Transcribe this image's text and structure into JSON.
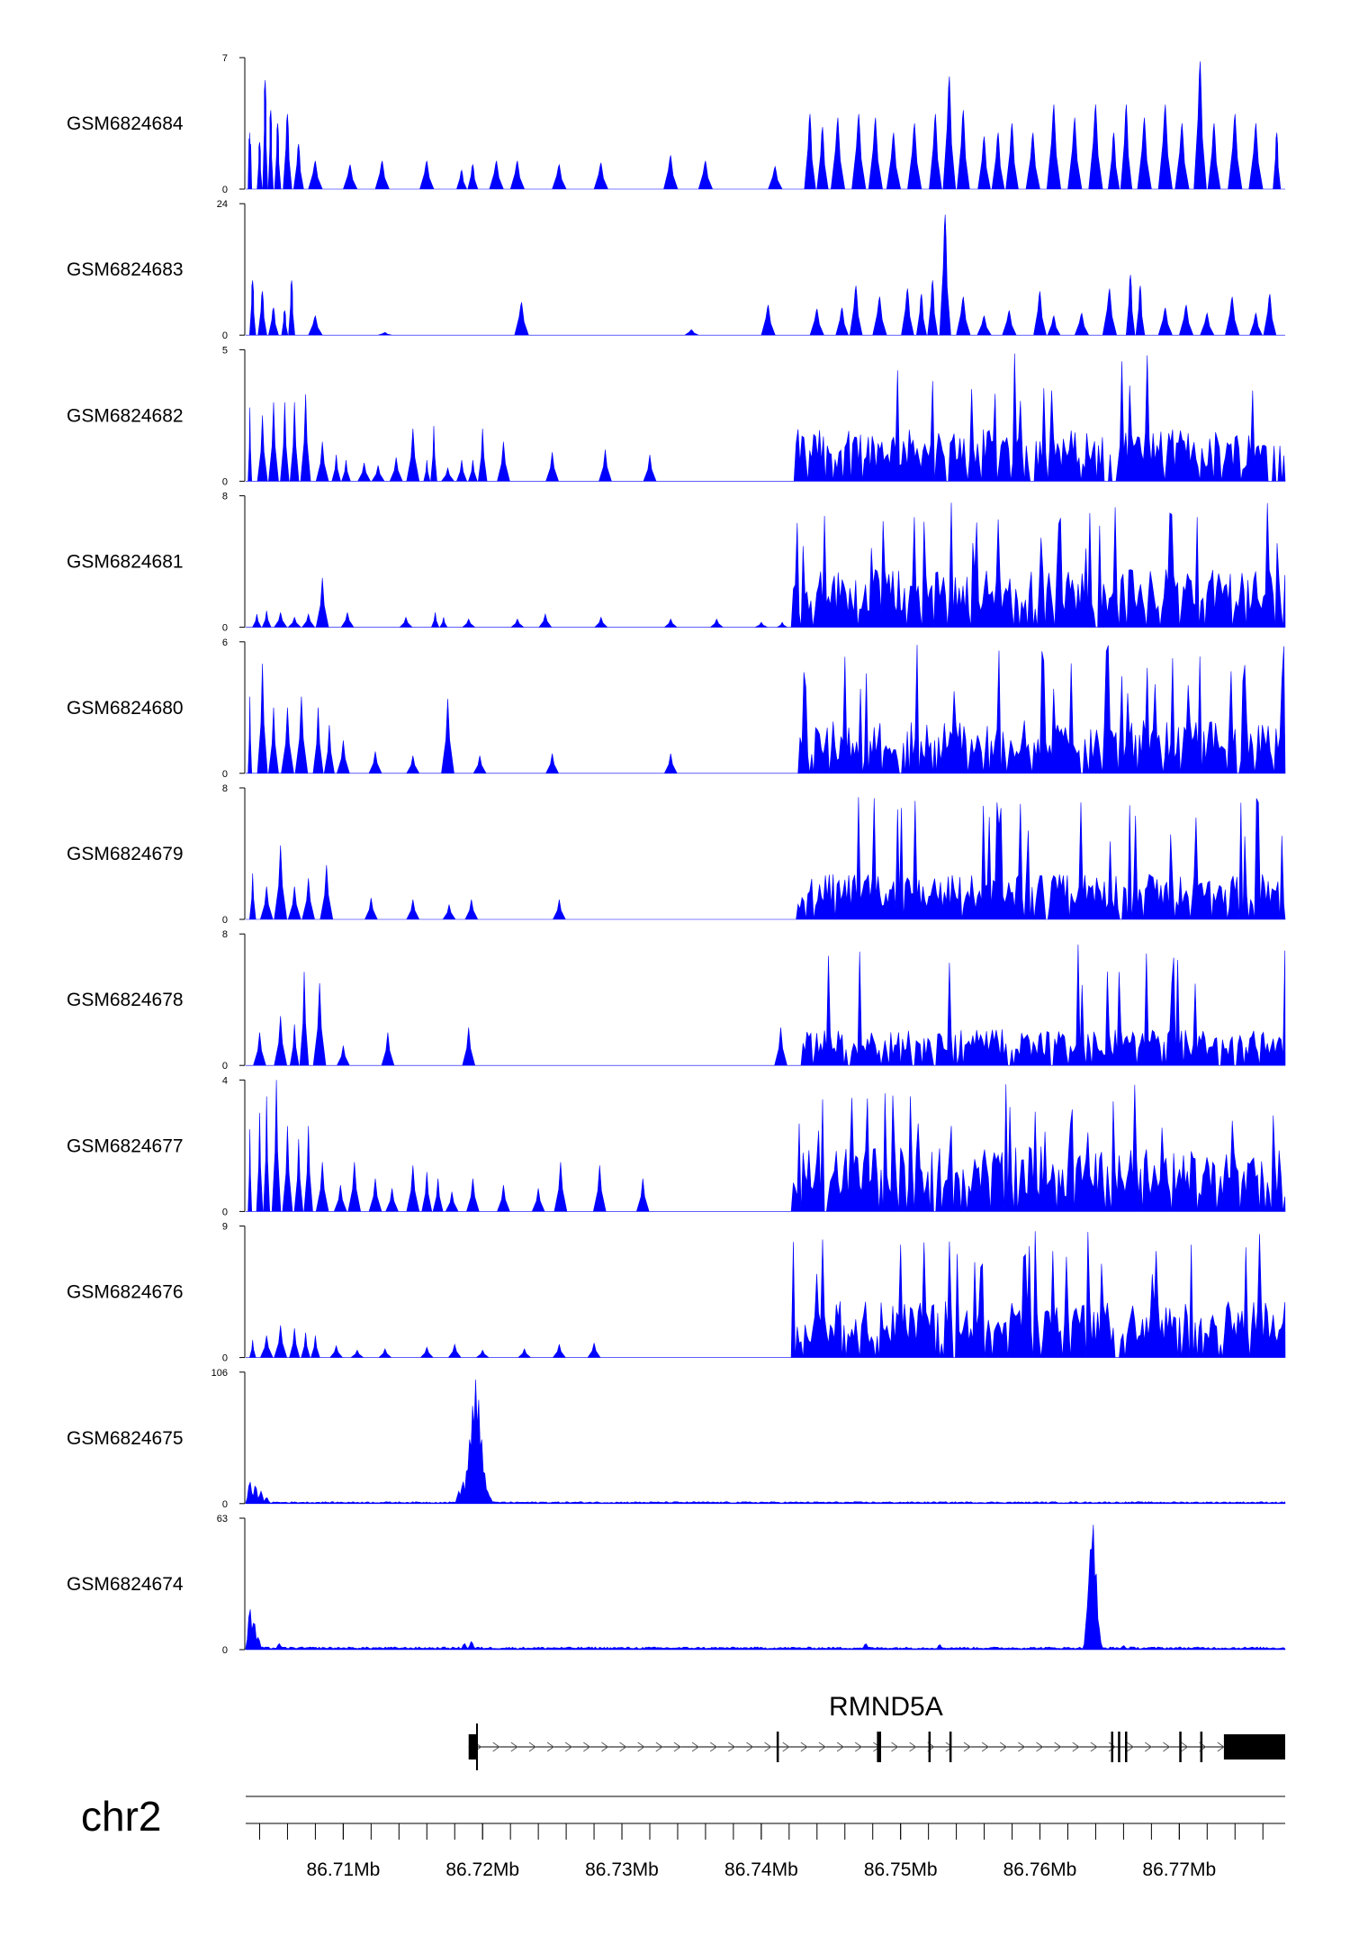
{
  "colors": {
    "signal": "#0000ff",
    "axis": "#000000",
    "gene": "#000000",
    "chrom_line": "#808080"
  },
  "chart_data": {
    "type": "area",
    "title": "",
    "chromosome": "chr2",
    "x_range_bp": [
      86703000,
      86777600
    ],
    "genomic_axis": {
      "ticks": [
        86710000,
        86720000,
        86730000,
        86740000,
        86750000,
        86760000,
        86770000
      ],
      "tick_labels": [
        "86.71Mb",
        "86.72Mb",
        "86.73Mb",
        "86.74Mb",
        "86.75Mb",
        "86.76Mb",
        "86.77Mb"
      ],
      "minor_tick_step_bp": 2000
    },
    "gene": {
      "name": "RMND5A",
      "strand": "+",
      "start_bp": 86719000,
      "end_bp": 86777600,
      "exons_bp": [
        [
          86719000,
          86719600
        ],
        [
          86741100,
          86741200
        ],
        [
          86748300,
          86748600
        ],
        [
          86752000,
          86752100
        ],
        [
          86753500,
          86753600
        ],
        [
          86765100,
          86765200
        ],
        [
          86765600,
          86765700
        ],
        [
          86766100,
          86766200
        ],
        [
          86770000,
          86770100
        ],
        [
          86771500,
          86771600
        ],
        [
          86773200,
          86777600
        ]
      ]
    },
    "tracks": [
      {
        "name": "GSM6824684",
        "ylim": [
          0,
          7
        ],
        "ytick_labels": [
          "7",
          "0"
        ],
        "style": "sparse",
        "peaks": [
          [
            86703300,
            3
          ],
          [
            86704000,
            2.5
          ],
          [
            86704400,
            5.8
          ],
          [
            86704800,
            4.2
          ],
          [
            86705300,
            3.5
          ],
          [
            86706000,
            4
          ],
          [
            86706800,
            2.4
          ],
          [
            86708000,
            1.5
          ],
          [
            86710500,
            1.3
          ],
          [
            86712800,
            1.5
          ],
          [
            86716000,
            1.5
          ],
          [
            86718500,
            1
          ],
          [
            86719300,
            1.3
          ],
          [
            86721000,
            1.5
          ],
          [
            86722500,
            1.5
          ],
          [
            86725500,
            1.3
          ],
          [
            86728500,
            1.4
          ],
          [
            86733500,
            1.8
          ],
          [
            86736000,
            1.5
          ],
          [
            86741000,
            1.2
          ],
          [
            86743500,
            4
          ],
          [
            86744400,
            3.3
          ],
          [
            86745500,
            3.8
          ],
          [
            86747000,
            4
          ],
          [
            86748200,
            3.8
          ],
          [
            86749500,
            3
          ],
          [
            86751000,
            3.5
          ],
          [
            86752500,
            4
          ],
          [
            86753500,
            6
          ],
          [
            86754500,
            4.2
          ],
          [
            86756000,
            2.8
          ],
          [
            86757000,
            3
          ],
          [
            86758000,
            3.5
          ],
          [
            86759500,
            3
          ],
          [
            86761000,
            4.5
          ],
          [
            86762500,
            3.8
          ],
          [
            86764000,
            4.5
          ],
          [
            86765300,
            3
          ],
          [
            86766200,
            4.5
          ],
          [
            86767500,
            3.8
          ],
          [
            86769000,
            4.5
          ],
          [
            86770200,
            3.5
          ],
          [
            86771500,
            6.8
          ],
          [
            86772500,
            3.5
          ],
          [
            86774000,
            4
          ],
          [
            86775500,
            3.5
          ],
          [
            86777000,
            3
          ]
        ]
      },
      {
        "name": "GSM6824683",
        "ylim": [
          0,
          24
        ],
        "ytick_labels": [
          "24",
          "0"
        ],
        "style": "sparse",
        "peaks": [
          [
            86703500,
            10
          ],
          [
            86704200,
            8
          ],
          [
            86705000,
            5
          ],
          [
            86705800,
            4.5
          ],
          [
            86706300,
            10
          ],
          [
            86708000,
            3.5
          ],
          [
            86713000,
            0.5
          ],
          [
            86722800,
            6
          ],
          [
            86735000,
            1
          ],
          [
            86740500,
            5.5
          ],
          [
            86744000,
            4.8
          ],
          [
            86745800,
            5
          ],
          [
            86746800,
            9
          ],
          [
            86748500,
            7
          ],
          [
            86750500,
            8.5
          ],
          [
            86751500,
            7.5
          ],
          [
            86752300,
            10
          ],
          [
            86753200,
            22
          ],
          [
            86754500,
            7
          ],
          [
            86756000,
            3.5
          ],
          [
            86757800,
            4.5
          ],
          [
            86760000,
            8
          ],
          [
            86761000,
            3.5
          ],
          [
            86763000,
            4
          ],
          [
            86765000,
            8.5
          ],
          [
            86766500,
            11
          ],
          [
            86767200,
            9
          ],
          [
            86769000,
            5
          ],
          [
            86770500,
            5.5
          ],
          [
            86772000,
            4
          ],
          [
            86773800,
            7
          ],
          [
            86775500,
            4
          ],
          [
            86776500,
            7.5
          ]
        ]
      },
      {
        "name": "GSM6824682",
        "ylim": [
          0,
          5
        ],
        "ytick_labels": [
          "5",
          "0"
        ],
        "style": "dense_right",
        "left_peaks": [
          [
            86703300,
            2.8
          ],
          [
            86704200,
            2.5
          ],
          [
            86705000,
            3
          ],
          [
            86705800,
            3
          ],
          [
            86706500,
            3
          ],
          [
            86707300,
            3.3
          ],
          [
            86708500,
            1.5
          ],
          [
            86709500,
            1
          ],
          [
            86710200,
            0.8
          ],
          [
            86711500,
            0.7
          ],
          [
            86712500,
            0.6
          ],
          [
            86713800,
            0.9
          ],
          [
            86715000,
            2
          ],
          [
            86716000,
            0.8
          ],
          [
            86716500,
            2.1
          ],
          [
            86717500,
            0.5
          ],
          [
            86718500,
            0.8
          ],
          [
            86719300,
            0.8
          ],
          [
            86720000,
            2
          ],
          [
            86721500,
            1.5
          ],
          [
            86725000,
            1.1
          ],
          [
            86728800,
            1.2
          ],
          [
            86732000,
            1
          ]
        ],
        "right_start_bp": 86742500,
        "right_level": 1.8,
        "right_max": 5
      },
      {
        "name": "GSM6824681",
        "ylim": [
          0,
          8
        ],
        "ytick_labels": [
          "8",
          "0"
        ],
        "style": "dense_right",
        "left_peaks": [
          [
            86703800,
            0.8
          ],
          [
            86704500,
            1
          ],
          [
            86705500,
            0.9
          ],
          [
            86706500,
            0.6
          ],
          [
            86707500,
            0.8
          ],
          [
            86708500,
            3
          ],
          [
            86710300,
            0.9
          ],
          [
            86714500,
            0.6
          ],
          [
            86716600,
            0.9
          ],
          [
            86717200,
            0.6
          ],
          [
            86719000,
            0.5
          ],
          [
            86722500,
            0.5
          ],
          [
            86724500,
            0.8
          ],
          [
            86728500,
            0.6
          ],
          [
            86733500,
            0.5
          ],
          [
            86736800,
            0.5
          ],
          [
            86740000,
            0.3
          ],
          [
            86741500,
            0.3
          ]
        ],
        "right_start_bp": 86742300,
        "right_level": 3.2,
        "right_max": 7.8
      },
      {
        "name": "GSM6824680",
        "ylim": [
          0,
          6
        ],
        "ytick_labels": [
          "6",
          "0"
        ],
        "style": "dense_right",
        "left_peaks": [
          [
            86703300,
            3.5
          ],
          [
            86704200,
            5
          ],
          [
            86705000,
            3
          ],
          [
            86706000,
            3
          ],
          [
            86707000,
            3.5
          ],
          [
            86708200,
            3
          ],
          [
            86709000,
            2.2
          ],
          [
            86710000,
            1.5
          ],
          [
            86712300,
            1
          ],
          [
            86715000,
            0.8
          ],
          [
            86717500,
            3.4
          ],
          [
            86719800,
            0.8
          ],
          [
            86725000,
            0.9
          ],
          [
            86733500,
            0.9
          ]
        ],
        "right_start_bp": 86742500,
        "right_level": 2.2,
        "right_max": 5.9
      },
      {
        "name": "GSM6824679",
        "ylim": [
          0,
          8
        ],
        "ytick_labels": [
          "8",
          "0"
        ],
        "style": "dense_right",
        "left_peaks": [
          [
            86703500,
            2.8
          ],
          [
            86704500,
            2
          ],
          [
            86705500,
            4.5
          ],
          [
            86706500,
            2
          ],
          [
            86707500,
            2.5
          ],
          [
            86708800,
            3.3
          ],
          [
            86712000,
            1.3
          ],
          [
            86715000,
            1.2
          ],
          [
            86717600,
            0.9
          ],
          [
            86719200,
            1.2
          ],
          [
            86725500,
            1.2
          ]
        ],
        "right_start_bp": 86742500,
        "right_level": 2.5,
        "right_max": 7.8
      },
      {
        "name": "GSM6824678",
        "ylim": [
          0,
          8
        ],
        "ytick_labels": [
          "8",
          "0"
        ],
        "style": "dense_right",
        "left_peaks": [
          [
            86704000,
            2
          ],
          [
            86705500,
            3
          ],
          [
            86706500,
            2.5
          ],
          [
            86707200,
            5.7
          ],
          [
            86708300,
            5
          ],
          [
            86710000,
            1.2
          ],
          [
            86713200,
            2
          ],
          [
            86719000,
            2.3
          ],
          [
            86741400,
            2.3
          ]
        ],
        "right_start_bp": 86743000,
        "right_level": 2,
        "right_max": 7.9
      },
      {
        "name": "GSM6824677",
        "ylim": [
          0,
          4
        ],
        "ytick_labels": [
          "4",
          "0"
        ],
        "style": "dense_right",
        "left_peaks": [
          [
            86703300,
            2.5
          ],
          [
            86704000,
            3
          ],
          [
            86704500,
            3.5
          ],
          [
            86705200,
            4
          ],
          [
            86706000,
            2.6
          ],
          [
            86706800,
            2.2
          ],
          [
            86707500,
            2.6
          ],
          [
            86708500,
            1.5
          ],
          [
            86709800,
            0.8
          ],
          [
            86710800,
            1.5
          ],
          [
            86712300,
            1
          ],
          [
            86713500,
            0.7
          ],
          [
            86715000,
            1.4
          ],
          [
            86716000,
            1.2
          ],
          [
            86716800,
            1
          ],
          [
            86717800,
            0.6
          ],
          [
            86719300,
            1
          ],
          [
            86721500,
            0.8
          ],
          [
            86724000,
            0.7
          ],
          [
            86725600,
            1.5
          ],
          [
            86728400,
            1.4
          ],
          [
            86731500,
            1
          ]
        ],
        "right_start_bp": 86742300,
        "right_level": 1.8,
        "right_max": 4
      },
      {
        "name": "GSM6824676",
        "ylim": [
          0,
          9
        ],
        "ytick_labels": [
          "9",
          "0"
        ],
        "style": "dense_right",
        "left_peaks": [
          [
            86703500,
            1.2
          ],
          [
            86704500,
            1.5
          ],
          [
            86705500,
            2.2
          ],
          [
            86706500,
            2
          ],
          [
            86707300,
            1.7
          ],
          [
            86708000,
            1.5
          ],
          [
            86709500,
            0.8
          ],
          [
            86711000,
            0.5
          ],
          [
            86713000,
            0.6
          ],
          [
            86716000,
            0.7
          ],
          [
            86718000,
            0.9
          ],
          [
            86720000,
            0.5
          ],
          [
            86723000,
            0.6
          ],
          [
            86725500,
            0.9
          ],
          [
            86728000,
            1
          ]
        ],
        "right_start_bp": 86742300,
        "right_level": 3.5,
        "right_max": 8.7
      },
      {
        "name": "GSM6824675",
        "ylim": [
          0,
          106
        ],
        "ytick_labels": [
          "106",
          "0"
        ],
        "style": "spiky",
        "baseline": 1.2,
        "peaks": [
          [
            86703300,
            18
          ],
          [
            86703700,
            15
          ],
          [
            86704100,
            10
          ],
          [
            86704500,
            5
          ],
          [
            86718300,
            10
          ],
          [
            86718600,
            18
          ],
          [
            86718900,
            30
          ],
          [
            86719100,
            55
          ],
          [
            86719300,
            80
          ],
          [
            86719500,
            100
          ],
          [
            86719700,
            85
          ],
          [
            86719900,
            55
          ],
          [
            86720100,
            28
          ],
          [
            86720300,
            12
          ],
          [
            86720500,
            6
          ]
        ]
      },
      {
        "name": "GSM6824674",
        "ylim": [
          0,
          63
        ],
        "ytick_labels": [
          "63",
          "0"
        ],
        "style": "spiky",
        "baseline": 1,
        "peaks": [
          [
            86703300,
            20
          ],
          [
            86703600,
            14
          ],
          [
            86703900,
            6
          ],
          [
            86705400,
            3
          ],
          [
            86718700,
            3
          ],
          [
            86719200,
            4
          ],
          [
            86747500,
            3
          ],
          [
            86752800,
            2.5
          ],
          [
            86763400,
            20
          ],
          [
            86763600,
            48
          ],
          [
            86763800,
            62
          ],
          [
            86764000,
            40
          ],
          [
            86764200,
            12
          ],
          [
            86766000,
            2
          ]
        ]
      }
    ]
  }
}
